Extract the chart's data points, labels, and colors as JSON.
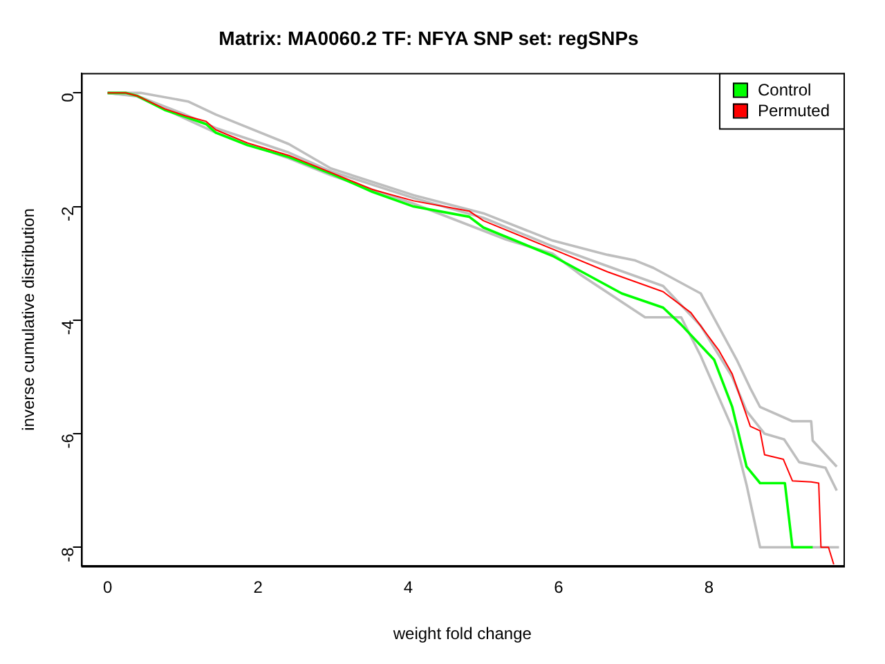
{
  "chart_data": {
    "type": "line",
    "title": "Matrix: MA0060.2 TF: NFYA SNP set: regSNPs",
    "xlabel": "weight fold change",
    "ylabel": "inverse cumulative distribution",
    "xlim": [
      -0.35,
      9.79
    ],
    "ylim": [
      -8.33,
      0.35
    ],
    "xticks": [
      0,
      2,
      4,
      6,
      8
    ],
    "yticks": [
      0,
      -2,
      -4,
      -6,
      -8
    ],
    "grid": false,
    "legend": "top right",
    "marker": "none",
    "series": [
      {
        "color": "#bebebe",
        "x": [
          0,
          0.44,
          1.07,
          1.44,
          2.41,
          2.97,
          4.07,
          5.0,
          5.92,
          6.65,
          7.02,
          7.26,
          7.89,
          8.37,
          8.55,
          8.68,
          9.11,
          9.36,
          9.38,
          9.7
        ],
        "values": [
          0,
          0,
          -0.15,
          -0.38,
          -0.9,
          -1.33,
          -1.8,
          -2.12,
          -2.6,
          -2.85,
          -2.95,
          -3.08,
          -3.53,
          -4.7,
          -5.2,
          -5.53,
          -5.78,
          -5.78,
          -6.12,
          -6.58
        ]
      },
      {
        "color": "#bebebe",
        "x": [
          0,
          0.39,
          1.03,
          1.44,
          2.41,
          2.97,
          4.07,
          5.3,
          5.92,
          6.29,
          7.15,
          7.63,
          7.89,
          8.31,
          8.5,
          8.68,
          9.73
        ],
        "values": [
          0,
          -0.06,
          -0.45,
          -0.7,
          -1.15,
          -1.45,
          -1.95,
          -2.58,
          -2.83,
          -3.2,
          -3.95,
          -3.95,
          -4.63,
          -5.9,
          -6.9,
          -8.0,
          -8.0
        ]
      },
      {
        "color": "#bebebe",
        "x": [
          0,
          0.39,
          1.03,
          1.44,
          2.41,
          2.97,
          4.07,
          5.0,
          5.92,
          6.65,
          7.39,
          7.89,
          8.31,
          8.5,
          8.74,
          9.0,
          9.2,
          9.55,
          9.7
        ],
        "values": [
          0,
          -0.05,
          -0.38,
          -0.62,
          -1.05,
          -1.38,
          -1.85,
          -2.2,
          -2.7,
          -3.05,
          -3.4,
          -4.1,
          -5.0,
          -5.6,
          -6.0,
          -6.1,
          -6.5,
          -6.6,
          -7.0
        ]
      },
      {
        "name": "Control",
        "color": "#00ff00",
        "x": [
          0,
          0.24,
          0.39,
          0.76,
          1.03,
          1.31,
          1.44,
          1.86,
          2.41,
          2.97,
          3.52,
          4.07,
          4.81,
          5.0,
          5.92,
          6.84,
          7.39,
          7.63,
          8.07,
          8.31,
          8.5,
          8.68,
          9.01,
          9.11,
          9.38
        ],
        "values": [
          0,
          0,
          -0.05,
          -0.3,
          -0.42,
          -0.55,
          -0.7,
          -0.92,
          -1.13,
          -1.42,
          -1.74,
          -2.0,
          -2.18,
          -2.37,
          -2.87,
          -3.53,
          -3.78,
          -4.08,
          -4.7,
          -5.53,
          -6.58,
          -6.87,
          -6.87,
          -8.0,
          -8.0
        ]
      },
      {
        "name": "Permuted",
        "color": "#ff0000",
        "x": [
          0,
          0.24,
          0.39,
          0.76,
          1.03,
          1.31,
          1.44,
          1.86,
          2.41,
          2.97,
          3.52,
          4.07,
          4.81,
          5.0,
          5.92,
          6.65,
          7.39,
          7.76,
          8.13,
          8.31,
          8.44,
          8.55,
          8.68,
          8.74,
          8.99,
          9.11,
          9.36,
          9.46,
          9.49,
          9.59,
          9.66
        ],
        "values": [
          0,
          0,
          -0.05,
          -0.28,
          -0.4,
          -0.5,
          -0.65,
          -0.88,
          -1.1,
          -1.4,
          -1.7,
          -1.9,
          -2.08,
          -2.25,
          -2.75,
          -3.15,
          -3.5,
          -3.87,
          -4.53,
          -4.95,
          -5.45,
          -5.87,
          -5.95,
          -6.37,
          -6.45,
          -6.83,
          -6.85,
          -6.87,
          -8.0,
          -8.0,
          -8.3
        ]
      }
    ]
  }
}
